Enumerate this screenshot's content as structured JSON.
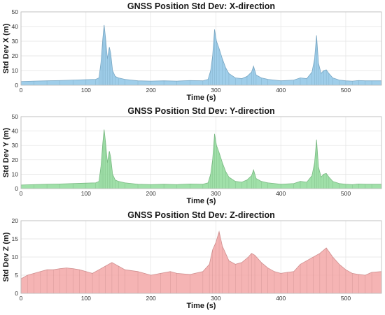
{
  "chart_data": [
    {
      "type": "area",
      "title": "GNSS Position Std Dev: X-direction",
      "xlabel": "Time (s)",
      "ylabel": "Std Dev X (m)",
      "xlim": [
        0,
        555
      ],
      "ylim": [
        0,
        50
      ],
      "xticks": [
        0,
        100,
        200,
        300,
        400,
        500
      ],
      "yticks": [
        0,
        10,
        20,
        30,
        40,
        50
      ],
      "grid": true,
      "color": "#8ec5e6",
      "series": [
        {
          "x": [
            0,
            20,
            40,
            60,
            80,
            100,
            115,
            120,
            123,
            126,
            128,
            130,
            133,
            136,
            138,
            141,
            145,
            150,
            160,
            180,
            200,
            220,
            240,
            260,
            280,
            288,
            292,
            295,
            298,
            301,
            305,
            310,
            315,
            320,
            330,
            340,
            348,
            355,
            358,
            362,
            370,
            380,
            400,
            420,
            430,
            440,
            448,
            452,
            455,
            458,
            462,
            466,
            470,
            474,
            480,
            490,
            500,
            510,
            520,
            530,
            540,
            555
          ],
          "y": [
            2.5,
            2.8,
            3.0,
            3.2,
            3.5,
            3.8,
            4.0,
            5.0,
            15.0,
            32.0,
            41.0,
            33.0,
            18.0,
            26.0,
            22.0,
            10.0,
            6.0,
            5.0,
            4.0,
            3.0,
            2.8,
            3.0,
            2.8,
            3.2,
            3.0,
            4.0,
            10.0,
            20.0,
            38.0,
            30.0,
            25.0,
            18.0,
            12.0,
            8.0,
            5.0,
            4.5,
            6.0,
            9.0,
            13.0,
            7.0,
            5.0,
            4.0,
            3.0,
            3.5,
            5.0,
            4.5,
            9.0,
            18.0,
            34.0,
            15.0,
            8.0,
            10.0,
            10.5,
            8.0,
            5.0,
            3.5,
            3.0,
            2.8,
            3.2,
            3.0,
            3.0,
            3.0
          ]
        }
      ]
    },
    {
      "type": "area",
      "title": "GNSS Position Std Dev: Y-direction",
      "xlabel": "Time (s)",
      "ylabel": "Std Dev Y (m)",
      "xlim": [
        0,
        555
      ],
      "ylim": [
        0,
        50
      ],
      "xticks": [
        0,
        100,
        200,
        300,
        400,
        500
      ],
      "yticks": [
        0,
        10,
        20,
        30,
        40,
        50
      ],
      "grid": true,
      "color": "#8fdb9a",
      "series": [
        {
          "x": [
            0,
            20,
            40,
            60,
            80,
            100,
            115,
            120,
            123,
            126,
            128,
            130,
            133,
            136,
            138,
            141,
            145,
            150,
            160,
            180,
            200,
            220,
            240,
            260,
            280,
            288,
            292,
            295,
            298,
            301,
            305,
            310,
            315,
            320,
            330,
            340,
            348,
            355,
            358,
            362,
            370,
            380,
            400,
            420,
            430,
            440,
            448,
            452,
            455,
            458,
            462,
            466,
            470,
            474,
            480,
            490,
            500,
            510,
            520,
            530,
            540,
            555
          ],
          "y": [
            2.5,
            2.8,
            3.0,
            3.2,
            3.5,
            3.8,
            4.0,
            5.0,
            15.0,
            32.0,
            41.0,
            33.0,
            18.0,
            26.0,
            22.0,
            10.0,
            6.0,
            5.0,
            4.0,
            3.0,
            2.8,
            3.0,
            2.8,
            3.2,
            3.0,
            4.0,
            10.0,
            20.0,
            38.0,
            30.0,
            25.0,
            18.0,
            12.0,
            8.0,
            5.0,
            4.5,
            6.0,
            9.0,
            13.0,
            7.0,
            5.0,
            4.0,
            3.0,
            3.5,
            5.0,
            4.5,
            9.0,
            18.0,
            34.0,
            15.0,
            8.0,
            10.0,
            10.5,
            8.0,
            5.0,
            3.5,
            3.0,
            2.8,
            3.2,
            3.0,
            3.0,
            3.0
          ]
        }
      ]
    },
    {
      "type": "area",
      "title": "GNSS Position Std Dev: Z-direction",
      "xlabel": "Time (s)",
      "ylabel": "Std Dev Z (m)",
      "xlim": [
        0,
        555
      ],
      "ylim": [
        0,
        20
      ],
      "xticks": [
        0,
        100,
        200,
        300,
        400,
        500
      ],
      "yticks": [
        0,
        5,
        10,
        15,
        20
      ],
      "grid": true,
      "color": "#f3a7a7",
      "series": [
        {
          "x": [
            0,
            10,
            20,
            30,
            40,
            50,
            60,
            70,
            80,
            90,
            100,
            110,
            120,
            130,
            140,
            150,
            160,
            180,
            200,
            215,
            230,
            240,
            260,
            280,
            290,
            295,
            300,
            305,
            310,
            320,
            330,
            340,
            350,
            355,
            360,
            370,
            380,
            390,
            400,
            410,
            420,
            430,
            440,
            450,
            460,
            470,
            480,
            490,
            500,
            510,
            520,
            530,
            540,
            555
          ],
          "y": [
            4.0,
            5.0,
            5.5,
            6.0,
            6.5,
            6.5,
            6.8,
            7.0,
            6.8,
            6.5,
            6.0,
            5.5,
            6.5,
            7.5,
            8.5,
            7.5,
            6.5,
            6.0,
            5.0,
            5.5,
            6.0,
            5.5,
            5.2,
            6.0,
            8.0,
            12.0,
            14.0,
            17.0,
            13.0,
            9.0,
            8.0,
            8.5,
            10.0,
            11.0,
            10.5,
            8.5,
            7.0,
            6.0,
            5.5,
            5.8,
            6.0,
            8.0,
            9.0,
            10.0,
            11.0,
            12.5,
            10.0,
            8.0,
            6.5,
            5.5,
            5.2,
            5.0,
            5.8,
            6.0
          ]
        }
      ]
    }
  ]
}
